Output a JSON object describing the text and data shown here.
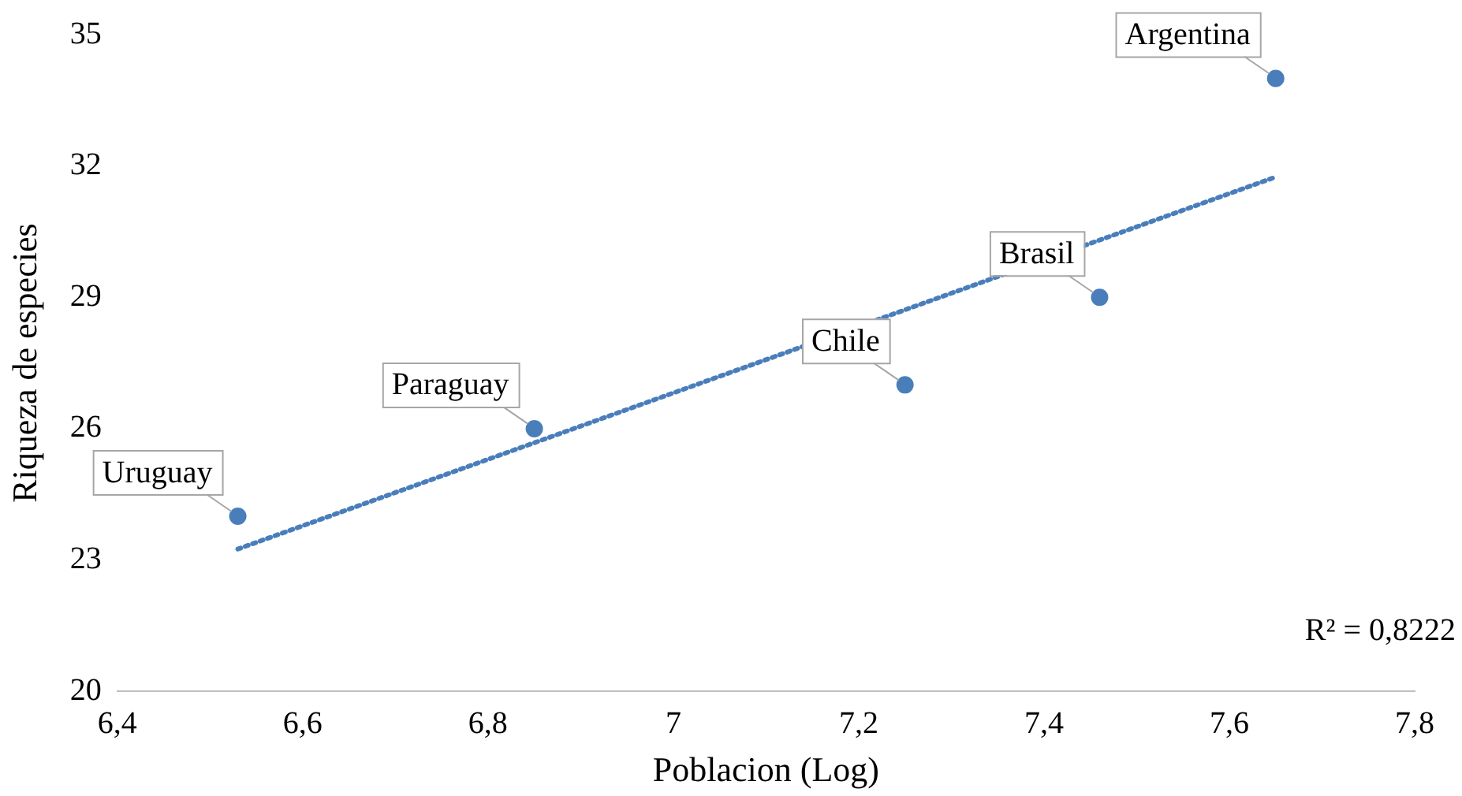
{
  "chart_data": {
    "type": "scatter",
    "xlabel": "Poblacion (Log)",
    "ylabel": "Riqueza de especies",
    "series": [
      {
        "color": "#4a7ebb",
        "marker": "circle",
        "x": [
          6.53,
          6.85,
          7.25,
          7.46,
          7.65
        ],
        "values": [
          24,
          26,
          27,
          29,
          34
        ]
      },
      {
        "type": "line",
        "color": "#4a7ebb",
        "marker": "none",
        "line_style": "dotted",
        "x": [
          6.53,
          7.65
        ],
        "values": [
          23.25,
          31.75
        ]
      }
    ],
    "annotations": [
      {
        "text": "Uruguay",
        "x": 6.53,
        "y": 24
      },
      {
        "text": "Paraguay",
        "x": 6.85,
        "y": 26
      },
      {
        "text": "Chile",
        "x": 7.25,
        "y": 27
      },
      {
        "text": "Brasil",
        "x": 7.46,
        "y": 29
      },
      {
        "text": "Argentina",
        "x": 7.65,
        "y": 34
      },
      "R² = 0,8222"
    ],
    "xlim": [
      6.4,
      7.8
    ],
    "ylim": [
      20,
      35
    ],
    "xticks": [
      {
        "value": 6.4,
        "label": "6,4"
      },
      {
        "value": 6.6,
        "label": "6,6"
      },
      {
        "value": 6.8,
        "label": "6,8"
      },
      7,
      {
        "value": 7.2,
        "label": "7,2"
      },
      {
        "value": 7.4,
        "label": "7,4"
      },
      {
        "value": 7.6,
        "label": "7,6"
      },
      {
        "value": 7.8,
        "label": "7,8"
      }
    ],
    "yticks": [
      20,
      23,
      26,
      29,
      32,
      35
    ],
    "grid": false
  }
}
